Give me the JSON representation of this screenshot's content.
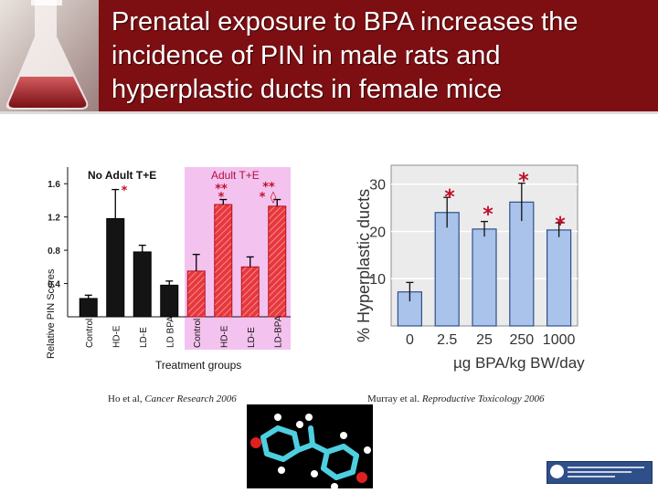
{
  "slide": {
    "title_lines": [
      "Prenatal exposure to BPA increases the",
      "incidence of PIN in male rats and",
      "hyperplastic ducts in female mice"
    ],
    "citation_left": {
      "authors": "Ho et al, ",
      "journal": "Cancer Research 2006"
    },
    "citation_right": {
      "authors": "Murray et al. ",
      "journal": "Reproductive Toxicology 2006"
    },
    "colors": {
      "header": "#7d0f13",
      "header_text": "#ffffff",
      "pink_panel": "#f4c2ef",
      "bar_fill_right": "#a9c3ea"
    }
  },
  "chart_data": [
    {
      "type": "bar",
      "ylabel": "Relative PIN Scores",
      "xlabel": "Treatment groups",
      "ylim": [
        0,
        1.8
      ],
      "yticks": [
        "1.6",
        "1.2",
        "0.8",
        "0.4"
      ],
      "group_labels": [
        "No Adult T+E",
        "Adult T+E"
      ],
      "categories": [
        "Control",
        "HD-E",
        "LD-E",
        "LD BPA",
        "Control",
        "HD-E",
        "LD-E",
        "LD-BPA"
      ],
      "values": [
        0.22,
        1.18,
        0.78,
        0.38,
        0.55,
        1.35,
        0.6,
        1.33
      ],
      "errors": [
        0.04,
        0.35,
        0.08,
        0.05,
        0.2,
        0.06,
        0.12,
        0.08
      ],
      "annotations": [
        "*",
        "**",
        "*",
        "**",
        "*",
        "◊"
      ]
    },
    {
      "type": "bar",
      "ylabel": "% Hyperplastic ducts",
      "xlabel": "µg BPA/kg BW/day",
      "ylim": [
        0,
        34
      ],
      "yticks": [
        "10",
        "20",
        "30"
      ],
      "categories": [
        "0",
        "2.5",
        "25",
        "250",
        "1000"
      ],
      "values": [
        7.2,
        24.0,
        20.5,
        26.2,
        20.3
      ],
      "errors": [
        2.0,
        3.2,
        1.6,
        4.0,
        1.5
      ],
      "annotations": [
        "*",
        "*",
        "*",
        "*"
      ],
      "grid": true
    }
  ]
}
